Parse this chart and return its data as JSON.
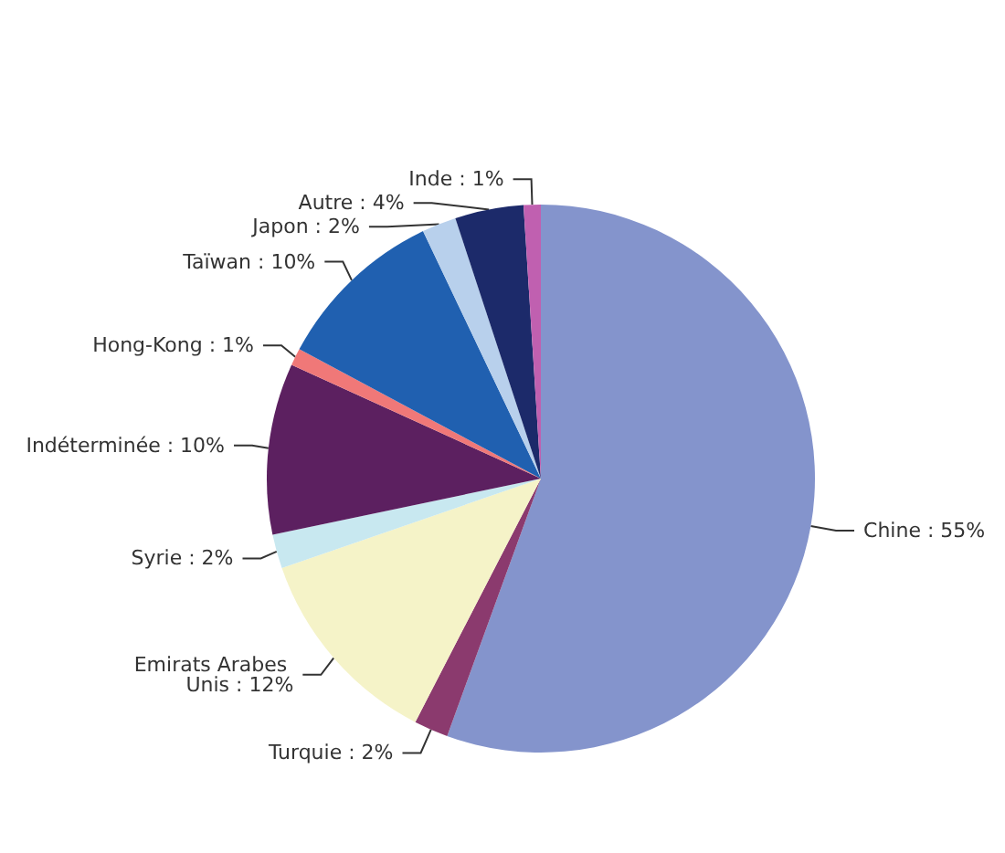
{
  "chart_data": {
    "type": "pie",
    "categories": [
      "Chine",
      "Turquie",
      "Emirats Arabes Unis",
      "Syrie",
      "Indéterminée",
      "Hong-Kong",
      "Taïwan",
      "Japon",
      "Autre",
      "Inde"
    ],
    "values": [
      55,
      2,
      12,
      2,
      10,
      1,
      10,
      2,
      4,
      1
    ],
    "value_labels": [
      "55%",
      "2%",
      "12%",
      "2%",
      "10%",
      "1%",
      "10%",
      "2%",
      "4%",
      "1%"
    ],
    "colors": [
      "#8494cc",
      "#8b3a6e",
      "#f5f3c8",
      "#c8e8f0",
      "#5c2060",
      "#f07878",
      "#2060b0",
      "#b8d0ec",
      "#1c2a6a",
      "#c060b0"
    ],
    "legend": false
  }
}
